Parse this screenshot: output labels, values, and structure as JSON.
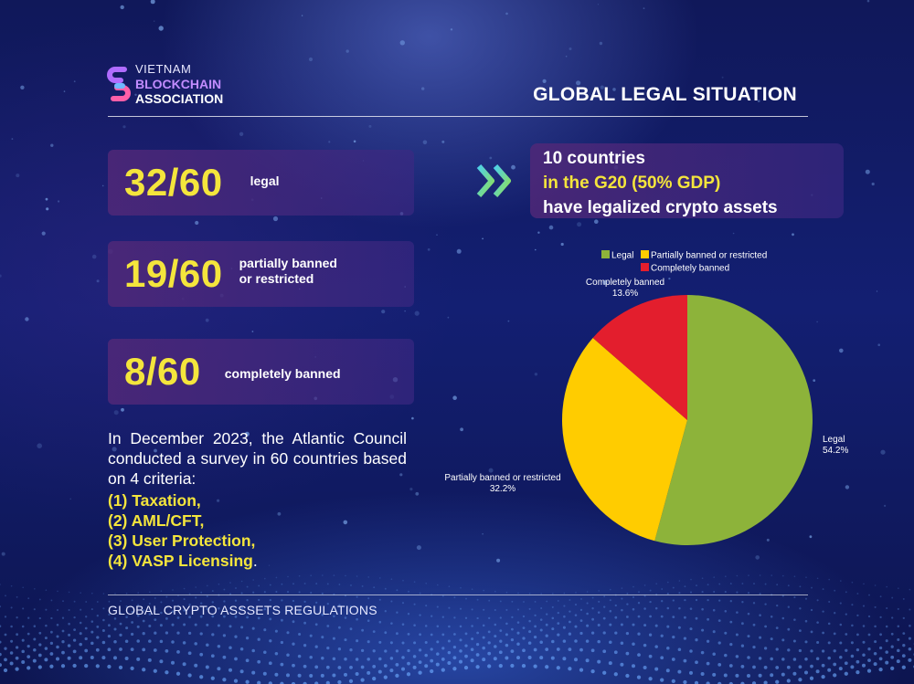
{
  "logo": {
    "line1": "VIETNAM",
    "line2": "BLOCKCHAIN",
    "line3": "ASSOCIATION"
  },
  "title": "GLOBAL LEGAL SITUATION",
  "stats": [
    {
      "value": "32/60",
      "label": "legal"
    },
    {
      "value": "19/60",
      "label_line1": "partially banned",
      "label_line2": "or restricted"
    },
    {
      "value": "8/60",
      "label": "completely banned"
    }
  ],
  "paragraph": "In December 2023, the Atlantic Council conducted a survey in 60 countries based on 4 criteria:",
  "criteria": [
    "(1) Taxation,",
    "(2) AML/CFT,",
    "(3) User Protection,",
    "(4) VASP Licensing"
  ],
  "criteria_end": ".",
  "g20": {
    "line1": "10 countries",
    "line2": "in the G20 (50% GDP)",
    "line3": "have legalized crypto assets"
  },
  "footer": "GLOBAL CRYPTO ASSSETS REGULATIONS",
  "colors": {
    "accent_yellow": "#f4e53c",
    "legal": "#8db33a",
    "partial": "#ffcc00",
    "banned": "#e31e2d"
  },
  "chart_data": {
    "type": "pie",
    "legend_position": "top",
    "slices": [
      {
        "name": "Legal",
        "value": 54.2,
        "label": "54.2%",
        "color": "#8db33a"
      },
      {
        "name": "Partially banned or restricted",
        "value": 32.2,
        "label": "32.2%",
        "color": "#ffcc00"
      },
      {
        "name": "Completely banned",
        "value": 13.6,
        "label": "13.6%",
        "color": "#e31e2d"
      }
    ]
  }
}
